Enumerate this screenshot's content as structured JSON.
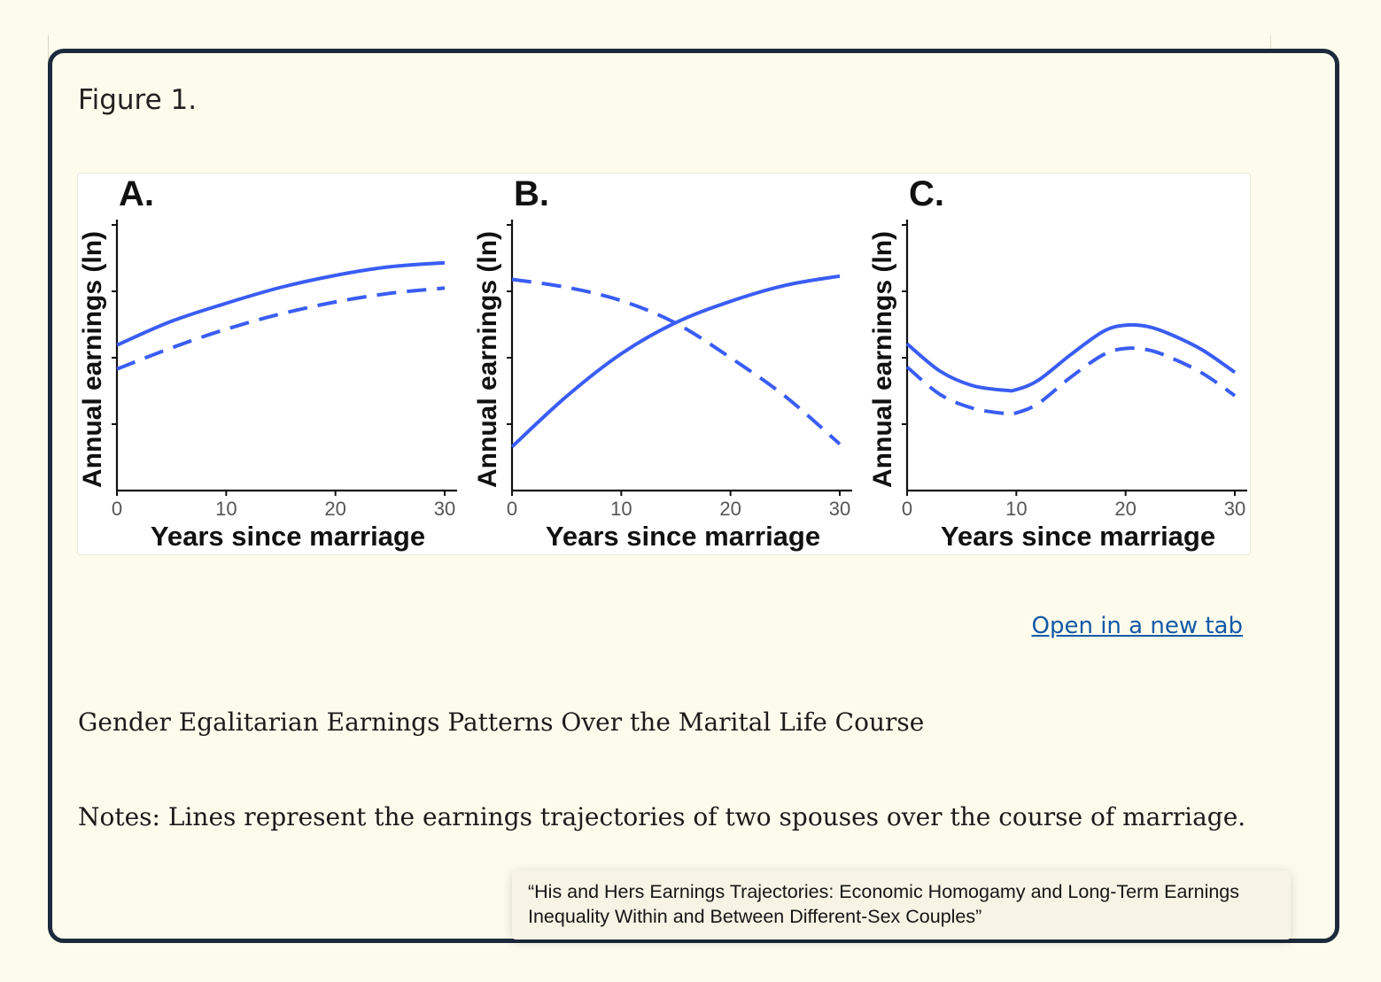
{
  "figure_label": "Figure 1.",
  "open_link": "Open in a new tab",
  "caption": "Gender Egalitarian Earnings Patterns Over the Marital Life Course",
  "notes": "Notes: Lines represent the earnings trajectories of two spouses over the course of marriage.",
  "tooltip": "“His and Hers Earnings Trajectories: Economic Homogamy and Long-Term Earnings Inequality Within and Between Different-Sex Couples”",
  "colors": {
    "line": "#3a5df5",
    "frame": "#1c2a3c",
    "link": "#1259a8"
  },
  "chart_data": [
    {
      "panel": "A.",
      "type": "line",
      "xlabel": "Years since marriage",
      "ylabel": "Annual earnings (ln)",
      "xticks": [
        0,
        10,
        20,
        30
      ],
      "xlim": [
        0,
        30
      ],
      "ylim": [
        0,
        4
      ],
      "series": [
        {
          "style": "solid",
          "x": [
            0,
            5,
            10,
            15,
            20,
            25,
            30
          ],
          "y": [
            2.19,
            2.55,
            2.82,
            3.06,
            3.24,
            3.37,
            3.43
          ]
        },
        {
          "style": "dashed",
          "x": [
            0,
            5,
            10,
            15,
            20,
            25,
            30
          ],
          "y": [
            1.83,
            2.15,
            2.43,
            2.66,
            2.84,
            2.97,
            3.05
          ]
        }
      ]
    },
    {
      "panel": "B.",
      "type": "line",
      "xlabel": "Years since marriage",
      "ylabel": "Annual earnings (ln)",
      "xticks": [
        0,
        10,
        20,
        30
      ],
      "xlim": [
        0,
        30
      ],
      "ylim": [
        0,
        4
      ],
      "series": [
        {
          "style": "solid",
          "x": [
            0,
            5,
            10,
            15,
            20,
            25,
            30
          ],
          "y": [
            0.66,
            1.42,
            2.06,
            2.53,
            2.85,
            3.09,
            3.23
          ]
        },
        {
          "style": "dashed",
          "x": [
            0,
            5,
            10,
            15,
            20,
            25,
            30
          ],
          "y": [
            3.18,
            3.06,
            2.86,
            2.52,
            2.0,
            1.42,
            0.7
          ]
        }
      ]
    },
    {
      "panel": "C.",
      "type": "line",
      "xlabel": "Years since marriage",
      "ylabel": "Annual earnings (ln)",
      "xticks": [
        0,
        10,
        20,
        30
      ],
      "xlim": [
        0,
        30
      ],
      "ylim": [
        0,
        4
      ],
      "series": [
        {
          "style": "solid",
          "x": [
            0,
            3,
            6,
            9,
            10,
            12,
            15,
            18,
            20,
            22,
            24,
            27,
            30
          ],
          "y": [
            2.21,
            1.8,
            1.58,
            1.51,
            1.52,
            1.66,
            2.05,
            2.4,
            2.49,
            2.47,
            2.36,
            2.12,
            1.78
          ]
        },
        {
          "style": "dashed",
          "x": [
            0,
            3,
            6,
            9,
            10,
            12,
            15,
            18,
            20,
            22,
            24,
            27,
            30
          ],
          "y": [
            1.86,
            1.45,
            1.24,
            1.16,
            1.17,
            1.31,
            1.71,
            2.05,
            2.14,
            2.12,
            2.01,
            1.77,
            1.43
          ]
        }
      ]
    }
  ]
}
